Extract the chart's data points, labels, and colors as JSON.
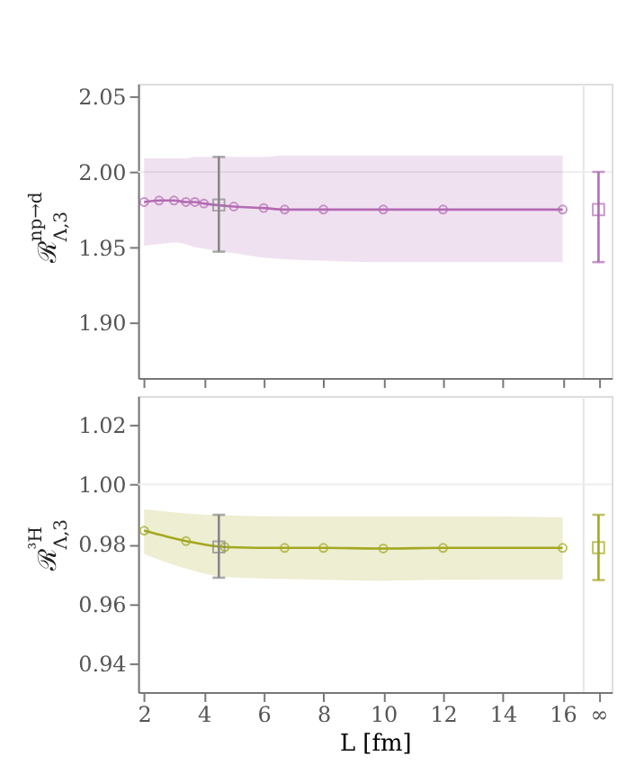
{
  "chart_data": [
    {
      "type": "line",
      "ylabel": "ℛ$^{np→d}$$_{Λ,3}$",
      "xlim": [
        1.8,
        17.64
      ],
      "ylim": [
        1.863,
        2.0587
      ],
      "xticks": [
        {
          "value": 2,
          "label": null
        },
        {
          "value": 4,
          "label": null
        },
        {
          "value": 6,
          "label": null
        },
        {
          "value": 8,
          "label": null
        },
        {
          "value": 10,
          "label": null
        },
        {
          "value": 12,
          "label": null
        },
        {
          "value": 14,
          "label": null
        },
        {
          "value": 16,
          "label": null
        },
        {
          "value": 17.2,
          "label": null
        }
      ],
      "yticks": [
        {
          "value": 1.9,
          "label": "1.90"
        },
        1.95,
        {
          "value": 2.0,
          "label": "2.00"
        },
        2.05
      ],
      "tick_labels": "y",
      "grid": false,
      "ref_lines": [
        {
          "axis": "x",
          "value": 16.7,
          "color": "#e6e6e6"
        },
        {
          "axis": "y",
          "value": 2.0,
          "color": "#eeeeee"
        }
      ],
      "series": [
        {
          "type": "line",
          "color": "#b36bb3",
          "marker": "circle",
          "x": [
            2,
            2.5,
            3,
            3.4,
            3.7,
            4,
            5,
            6,
            6.7,
            8,
            10,
            12,
            16
          ],
          "values": [
            1.98,
            1.981,
            1.981,
            1.98,
            1.98,
            1.979,
            1.977,
            1.976,
            1.975,
            1.975,
            1.975,
            1.975,
            1.975
          ],
          "lower": [
            1.951,
            1.952,
            1.953,
            1.952,
            1.95,
            1.949,
            1.946,
            1.943,
            1.942,
            1.941,
            1.94,
            1.94,
            1.94
          ],
          "upper": [
            2.009,
            2.009,
            2.009,
            2.009,
            2.01,
            2.01,
            2.01,
            2.01,
            2.011,
            2.011,
            2.011,
            2.011,
            2.011
          ]
        },
        {
          "type": "scatter",
          "color": "#888888",
          "marker": "square",
          "x": [
            4.5
          ],
          "values": [
            1.978
          ],
          "errors": [
            [
              1.947,
              2.01
            ]
          ]
        },
        {
          "type": "scatter",
          "color": "#b36bb3",
          "marker": "square",
          "x": [
            17.2
          ],
          "values": [
            1.975
          ],
          "errors": [
            [
              1.94,
              2.0
            ]
          ]
        }
      ]
    },
    {
      "type": "line",
      "ylabel": "ℛ$^{³H}$$_{Λ,3}$",
      "xlabel": "L [fm]",
      "xlim": [
        1.8,
        17.64
      ],
      "ylim": [
        0.9303,
        1.0297
      ],
      "xticks": [
        2,
        4,
        6,
        8,
        10,
        12,
        14,
        16,
        {
          "value": 17.2,
          "label": "∞"
        }
      ],
      "yticks": [
        0.94,
        0.96,
        0.98,
        {
          "value": 1.0,
          "label": "1.00"
        },
        1.02
      ],
      "grid": false,
      "ref_lines": [
        {
          "axis": "x",
          "value": 16.7,
          "color": "#e6e6e6"
        },
        {
          "axis": "y",
          "value": 1.0,
          "color": "#eeeeee"
        }
      ],
      "series": [
        {
          "type": "line",
          "color": "#a3a820",
          "marker": "circle",
          "x": [
            2,
            3.4,
            4.7,
            6.7,
            8,
            10,
            12,
            16
          ],
          "values": [
            0.9845,
            0.981,
            0.979,
            0.9787,
            0.9787,
            0.9785,
            0.9787,
            0.9787
          ],
          "lower": [
            0.9767,
            0.9718,
            0.969,
            0.9683,
            0.968,
            0.9677,
            0.968,
            0.9681
          ],
          "upper": [
            0.9917,
            0.9903,
            0.9896,
            0.9893,
            0.9893,
            0.9893,
            0.9893,
            0.989
          ]
        },
        {
          "type": "scatter",
          "color": "#888888",
          "marker": "square",
          "x": [
            4.5
          ],
          "values": [
            0.979
          ],
          "errors": [
            [
              0.9687,
              0.9898
            ]
          ]
        },
        {
          "type": "scatter",
          "color": "#a3a820",
          "marker": "square",
          "x": [
            17.2
          ],
          "values": [
            0.9788
          ],
          "errors": [
            [
              0.9679,
              0.9898
            ]
          ]
        }
      ]
    }
  ]
}
